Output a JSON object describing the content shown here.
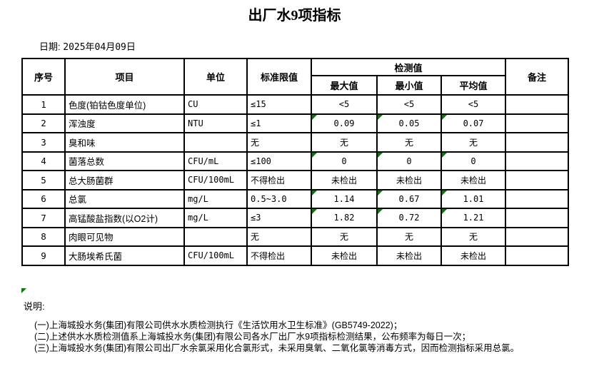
{
  "title": "出厂水9项指标",
  "date": {
    "label": "日期:",
    "value": "2025年04月09日"
  },
  "table": {
    "headers": {
      "seq": "序号",
      "item": "项目",
      "unit": "单位",
      "limit": "标准限值",
      "detect": "检测值",
      "max": "最大值",
      "min": "最小值",
      "avg": "平均值",
      "remark": "备注"
    },
    "rows": [
      {
        "seq": "1",
        "item": "色度(铂钴色度单位)",
        "unit": "CU",
        "limit": "≤15",
        "max": "<5",
        "min": "<5",
        "avg": "<5",
        "remark": "",
        "flag": false
      },
      {
        "seq": "2",
        "item": "浑浊度",
        "unit": "NTU",
        "limit": "≤1",
        "max": "0.09",
        "min": "0.05",
        "avg": "0.07",
        "remark": "",
        "flag": true
      },
      {
        "seq": "3",
        "item": "臭和味",
        "unit": "",
        "limit": "无",
        "max": "无",
        "min": "无",
        "avg": "无",
        "remark": "",
        "flag": false
      },
      {
        "seq": "4",
        "item": "菌落总数",
        "unit": "CFU/mL",
        "limit": "≤100",
        "max": "0",
        "min": "0",
        "avg": "0",
        "remark": "",
        "flag": true
      },
      {
        "seq": "5",
        "item": "总大肠菌群",
        "unit": "CFU/100mL",
        "limit": "不得检出",
        "max": "未检出",
        "min": "未检出",
        "avg": "未检出",
        "remark": "",
        "flag": false
      },
      {
        "seq": "6",
        "item": "总氯",
        "unit": "mg/L",
        "limit": "0.5~3.0",
        "max": "1.14",
        "min": "0.67",
        "avg": "1.01",
        "remark": "",
        "flag": true
      },
      {
        "seq": "7",
        "item": "高锰酸盐指数(以O2计)",
        "unit": "mg/L",
        "limit": "≤3",
        "max": "1.82",
        "min": "0.72",
        "avg": "1.21",
        "remark": "",
        "flag": true
      },
      {
        "seq": "8",
        "item": "肉眼可见物",
        "unit": "",
        "limit": "无",
        "max": "无",
        "min": "无",
        "avg": "无",
        "remark": "",
        "flag": false
      },
      {
        "seq": "9",
        "item": "大肠埃希氏菌",
        "unit": "CFU/100mL",
        "limit": "不得检出",
        "max": "未检出",
        "min": "未检出",
        "avg": "未检出",
        "remark": "",
        "flag": false
      }
    ]
  },
  "notes": {
    "label": "说明:",
    "lines": [
      "(一)上海城投水务(集团)有限公司供水水质检测执行《生活饮用水卫生标准》(GB5749-2022)；",
      "(二)上述供水水质检测值系上海城投水务(集团)有限公司各水厂出厂水9项指标检测结果，公布频率为每日一次；",
      "(三)上海城投水务(集团)有限公司出厂水余氯采用化合氯形式，未采用臭氧、二氧化氯等消毒方式，因而检测指标采用总氯。"
    ]
  },
  "colors": {
    "flag_triangle": "#008000",
    "border": "#000000",
    "text": "#000000",
    "background": "#ffffff"
  }
}
